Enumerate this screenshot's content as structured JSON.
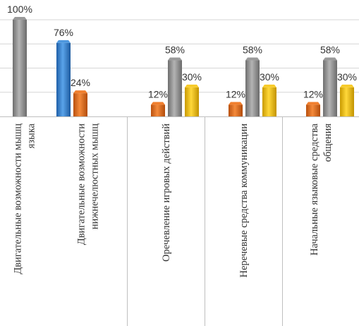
{
  "chart_data": {
    "type": "bar",
    "orientation": "vertical",
    "style": "3d-cylinder-bars",
    "categories": [
      [
        "Двигательные возможности мышц",
        "языка"
      ],
      [
        "Двигательные возможности",
        "нижнечелюстных мышц"
      ],
      [
        "Оречевление игровых действий"
      ],
      [
        "Неречевые средства коммуникации"
      ],
      [
        "Начальные языковые средства",
        "общения"
      ]
    ],
    "series": [
      {
        "values": [
          100,
          0,
          58,
          58,
          58
        ],
        "color": "#8c8c8c"
      },
      {
        "values": [
          0,
          76,
          0,
          0,
          0
        ],
        "color": "#3a86d0"
      },
      {
        "values": [
          0,
          24,
          12,
          12,
          12
        ],
        "color": "#e8711f"
      },
      {
        "values": [
          0,
          0,
          30,
          30,
          30
        ],
        "color": "#f5c100"
      }
    ],
    "data_labels": [
      [
        "100%",
        null,
        "58%",
        "58%",
        "58%"
      ],
      [
        null,
        "76%",
        null,
        null,
        null
      ],
      [
        null,
        "24%",
        "12%",
        "12%",
        "12%"
      ],
      [
        null,
        null,
        "30%",
        "30%",
        "30%"
      ]
    ],
    "ylim": [
      0,
      100
    ],
    "grid": true,
    "legend": "none"
  }
}
